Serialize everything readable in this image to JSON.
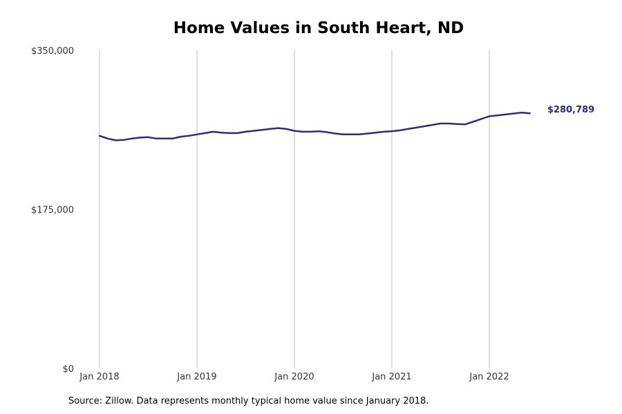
{
  "title": "Home Values in South Heart, ND",
  "source_note": "Source: Zillow. Data represents monthly typical home value since January 2018.",
  "colors": {
    "line": "#2e2a7e",
    "grid": "#bdbdbd",
    "text": "#333333"
  },
  "chart_data": {
    "type": "line",
    "title": "Home Values in South Heart, ND",
    "xlabel": "",
    "ylabel": "",
    "grid": "vertical",
    "ylim": [
      0,
      350000
    ],
    "yticks": [
      0,
      175000,
      350000
    ],
    "ytick_labels": [
      "$0",
      "$175,000",
      "$350,000"
    ],
    "xticks": [
      "2018-01",
      "2019-01",
      "2020-01",
      "2021-01",
      "2022-01"
    ],
    "xtick_labels": [
      "Jan 2018",
      "Jan 2019",
      "Jan 2020",
      "Jan 2021",
      "Jan 2022"
    ],
    "end_label": "$280,789",
    "series": [
      {
        "x": [
          "2018-01",
          "2018-02",
          "2018-03",
          "2018-04",
          "2018-05",
          "2018-06",
          "2018-07",
          "2018-08",
          "2018-09",
          "2018-10",
          "2018-11",
          "2018-12",
          "2019-01",
          "2019-02",
          "2019-03",
          "2019-04",
          "2019-05",
          "2019-06",
          "2019-07",
          "2019-08",
          "2019-09",
          "2019-10",
          "2019-11",
          "2019-12",
          "2020-01",
          "2020-02",
          "2020-03",
          "2020-04",
          "2020-05",
          "2020-06",
          "2020-07",
          "2020-08",
          "2020-09",
          "2020-10",
          "2020-11",
          "2020-12",
          "2021-01",
          "2021-02",
          "2021-03",
          "2021-04",
          "2021-05",
          "2021-06",
          "2021-07",
          "2021-08",
          "2021-09",
          "2021-10",
          "2021-11",
          "2021-12",
          "2022-01",
          "2022-02",
          "2022-03",
          "2022-04",
          "2022-05",
          "2022-06"
        ],
        "values": [
          256000,
          253000,
          251000,
          251500,
          253000,
          254000,
          254500,
          253000,
          253000,
          253000,
          255000,
          256000,
          257500,
          259000,
          260500,
          259500,
          259000,
          259000,
          260500,
          261500,
          262500,
          263500,
          264500,
          263500,
          261500,
          260500,
          260500,
          261000,
          260000,
          258500,
          257500,
          257500,
          257500,
          258500,
          259500,
          260500,
          261000,
          262000,
          263500,
          265000,
          266500,
          268000,
          269500,
          269500,
          269000,
          268500,
          271500,
          274500,
          277500,
          278500,
          279500,
          280500,
          281500,
          280789
        ]
      }
    ]
  }
}
